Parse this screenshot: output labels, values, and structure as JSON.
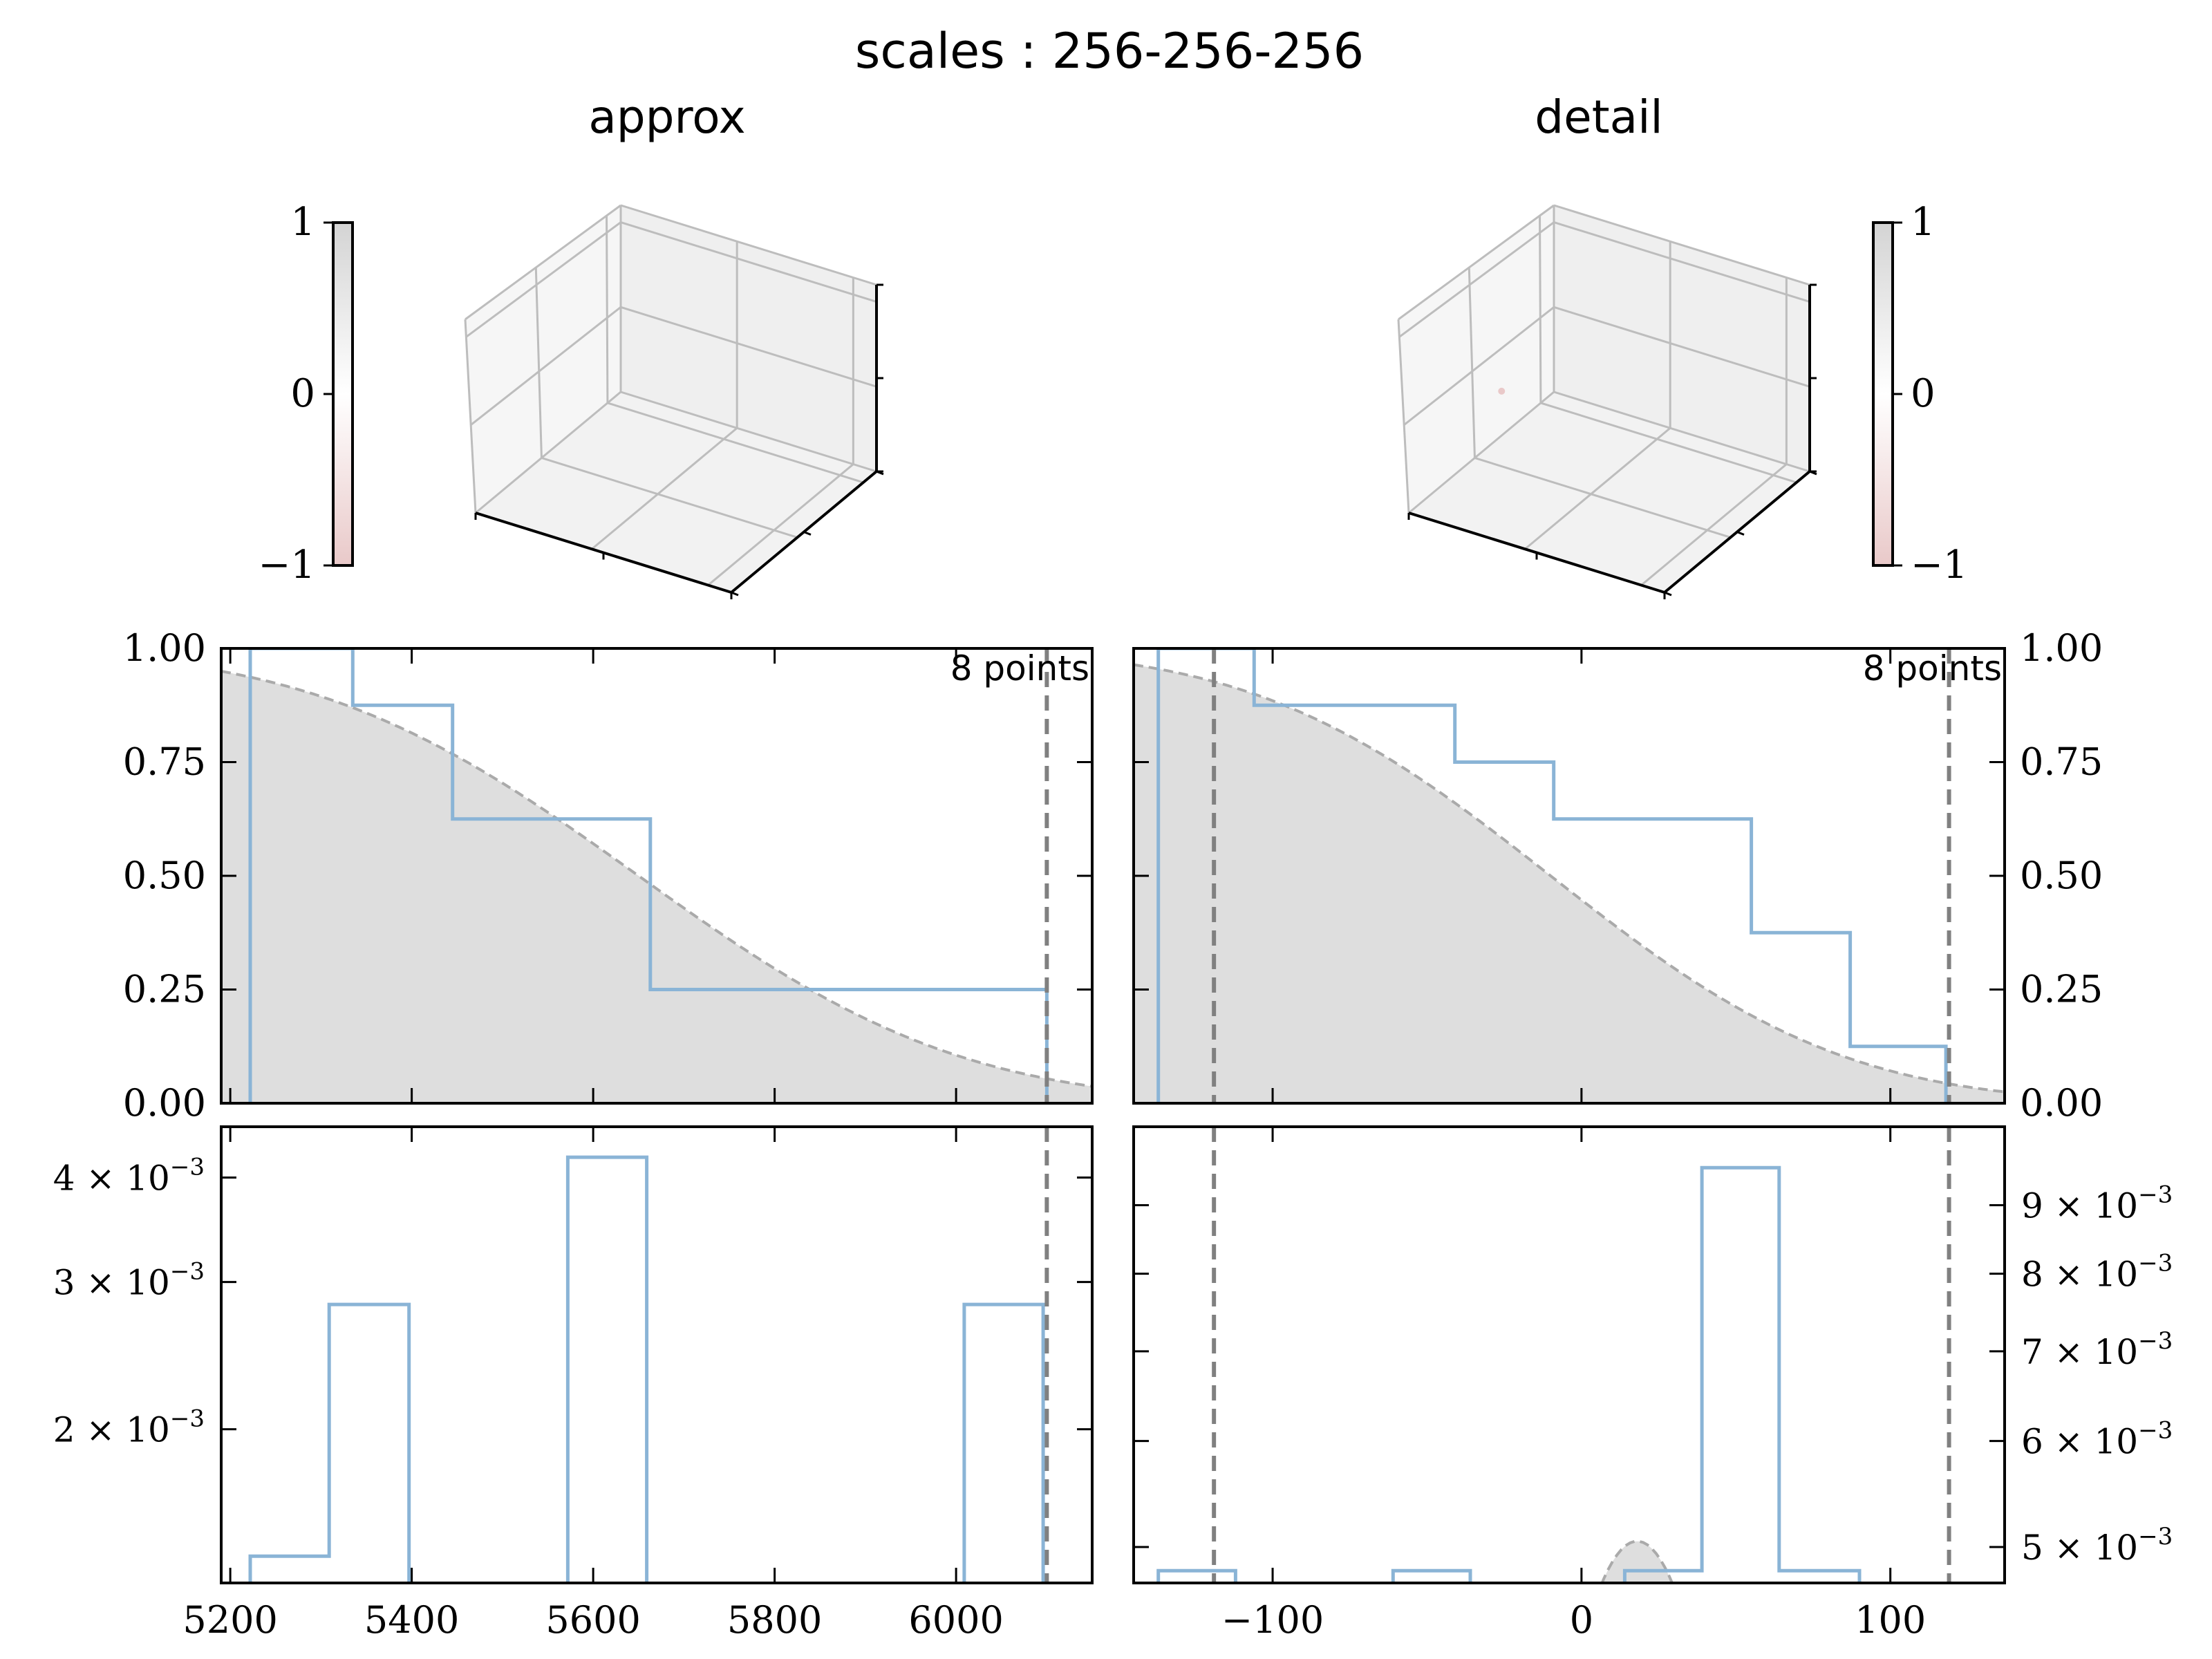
{
  "title": "scales : 256-256-256",
  "colors": {
    "step": "#8ab4d6",
    "fill": "#dedede",
    "curve": "#aaaaaa",
    "vline": "#808080",
    "axis": "#000000",
    "grid3d": "#bdbdbd",
    "pane3d": "#f2f2f2",
    "cb_top": "#d4d4d4",
    "cb_mid": "#ffffff",
    "cb_bottom": "#e9c9c9"
  },
  "chart_data": [
    {
      "name": "approx-cube",
      "type": "3d-scatter",
      "title": "approx",
      "colorbar": {
        "ticks": [
          "1",
          "0",
          "−1"
        ],
        "range": [
          -1,
          1
        ]
      },
      "points": []
    },
    {
      "name": "detail-cube",
      "type": "3d-scatter",
      "title": "detail",
      "colorbar": {
        "ticks": [
          "1",
          "0",
          "−1"
        ],
        "range": [
          -1,
          1
        ]
      },
      "points": [
        {
          "value": -0.2
        }
      ]
    },
    {
      "name": "approx-cdf",
      "type": "line",
      "annotation": "8 points",
      "xlim": [
        5190,
        6150
      ],
      "ylim": [
        0,
        1
      ],
      "yticks": [
        "0.00",
        "0.25",
        "0.50",
        "0.75",
        "1.00"
      ],
      "step_x": [
        5222,
        5222,
        5335,
        5335,
        5445,
        5445,
        5663,
        5663,
        6100,
        6100
      ],
      "step_y": [
        0,
        1.0,
        1.0,
        0.875,
        0.875,
        0.625,
        0.625,
        0.25,
        0.25,
        0
      ],
      "fitted_cdf": {
        "mean": 5650,
        "sd": 280
      },
      "vlines": [
        6100
      ]
    },
    {
      "name": "detail-cdf",
      "type": "line",
      "annotation": "8 points",
      "xlim": [
        -145,
        137
      ],
      "ylim": [
        0,
        1
      ],
      "yticks": [
        "0.00",
        "0.25",
        "0.50",
        "0.75",
        "1.00"
      ],
      "step_x": [
        -137,
        -137,
        -106,
        -106,
        -41,
        -41,
        -9,
        -9,
        55,
        55,
        87,
        87,
        118,
        118
      ],
      "step_y": [
        0,
        1.0,
        1.0,
        0.875,
        0.875,
        0.75,
        0.75,
        0.625,
        0.625,
        0.375,
        0.375,
        0.125,
        0.125,
        0
      ],
      "fitted_cdf": {
        "mean": -10,
        "sd": 75
      },
      "vlines": [
        -119,
        119
      ]
    },
    {
      "name": "approx-hist",
      "type": "bar",
      "xlim": [
        5190,
        6150
      ],
      "xticks": [
        "5200",
        "5400",
        "5600",
        "5800",
        "6000"
      ],
      "yscale": "log",
      "ylim": [
        0.00131,
        0.0046
      ],
      "yticks": [
        {
          "value": 0.002,
          "mant": "2",
          "exp": "−3"
        },
        {
          "value": 0.003,
          "mant": "3",
          "exp": "−3"
        },
        {
          "value": 0.004,
          "mant": "4",
          "exp": "−3"
        }
      ],
      "edges": [
        5222,
        5309,
        5397,
        5484,
        5572,
        5659,
        5746,
        5834,
        5921,
        6009,
        6096
      ],
      "values": [
        0.00141,
        0.00282,
        0,
        0,
        0.00423,
        0,
        0,
        0,
        0,
        0.00282
      ],
      "vlines": [
        6100
      ]
    },
    {
      "name": "detail-hist",
      "type": "bar",
      "xlim": [
        -145,
        137
      ],
      "xticks": [
        "−100",
        "0",
        "100"
      ],
      "yscale": "log",
      "ylim": [
        0.0047,
        0.0103
      ],
      "yticks": [
        {
          "value": 0.005,
          "mant": "5",
          "exp": "−3"
        },
        {
          "value": 0.006,
          "mant": "6",
          "exp": "−3"
        },
        {
          "value": 0.007,
          "mant": "7",
          "exp": "−3"
        },
        {
          "value": 0.008,
          "mant": "8",
          "exp": "−3"
        },
        {
          "value": 0.009,
          "mant": "9",
          "exp": "−3"
        }
      ],
      "edges": [
        -137,
        -112,
        -87,
        -61,
        -36,
        -11,
        14,
        39,
        64,
        90,
        115
      ],
      "values": [
        0.0048,
        0,
        0,
        0.0048,
        0,
        0,
        0.0048,
        0.0096,
        0.0048,
        0
      ],
      "normal_pdf": {
        "mean": 18,
        "peak": 0.00505
      },
      "vlines": [
        -119,
        119
      ]
    }
  ]
}
